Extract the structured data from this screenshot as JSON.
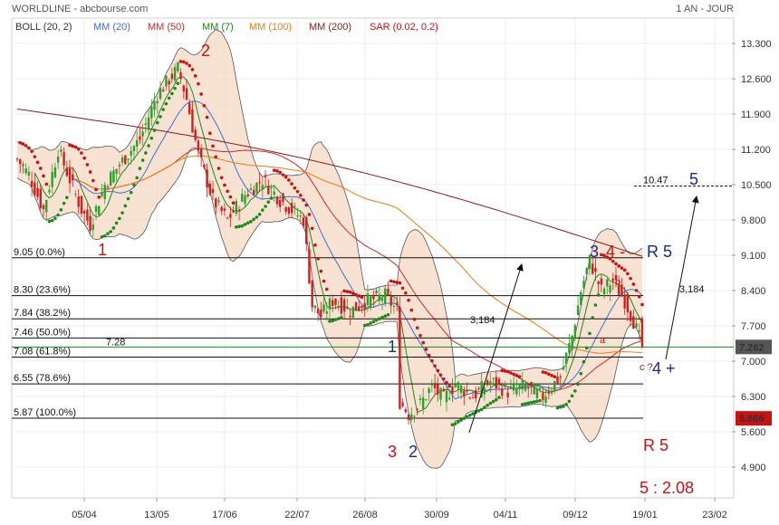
{
  "header": {
    "title": "WORLDLINE - abcbourse.com",
    "period": "1 AN - JOUR"
  },
  "indicators": [
    {
      "label": "BOLL (20, 2)",
      "color": "#333333"
    },
    {
      "label": "MM (20)",
      "color": "#3a6fd8"
    },
    {
      "label": "MM (50)",
      "color": "#d62828"
    },
    {
      "label": "MM (7)",
      "color": "#1a8a1a"
    },
    {
      "label": "MM (100)",
      "color": "#f07a10"
    },
    {
      "label": "MM (200)",
      "color": "#8b1a1a"
    },
    {
      "label": "SAR (0.02, 0.2)",
      "color": "#cc1111"
    }
  ],
  "colors": {
    "up_candle": "#2e9e2e",
    "down_candle": "#d11f1f",
    "bollinger_fill": "#f6d9c3",
    "last_price_box": "#555555",
    "ref_price_box": "#cc1111"
  },
  "annotations": {
    "fib_levels": [
      {
        "label": "9.05  (0.0%)",
        "value": 9.05
      },
      {
        "label": "8.30  (23.6%)",
        "value": 8.3
      },
      {
        "label": "7.84  (38.2%)",
        "value": 7.84
      },
      {
        "label": "7.46  (50.0%)",
        "value": 7.46
      },
      {
        "label": "7.08  (61.8%)",
        "value": 7.08
      },
      {
        "label": "6.55  (78.6%)",
        "value": 6.55
      },
      {
        "label": "5.87  (100.0%)",
        "value": 5.87
      }
    ],
    "hline_728": "7.28",
    "hline_1047": "10.47",
    "measure_left": "3,184",
    "measure_right": "3,184",
    "waves": [
      {
        "text": "1",
        "color": "#cc1111"
      },
      {
        "text": "2",
        "color": "#cc1111"
      },
      {
        "text": "1",
        "color": "#1a2a8a"
      },
      {
        "text": "3",
        "color": "#cc1111"
      },
      {
        "text": "2",
        "color": "#1a2a8a"
      },
      {
        "text": "3",
        "color": "#1a2a8a"
      },
      {
        "text": "4 -",
        "color": "#cc1111"
      },
      {
        "text": "R 5",
        "color": "#1a2a8a"
      },
      {
        "text": "4 +",
        "color": "#1a2a8a"
      },
      {
        "text": "5",
        "color": "#1a2a8a"
      },
      {
        "text": "R 5",
        "color": "#cc1111"
      },
      {
        "text": "5 : 2.08",
        "color": "#cc1111"
      }
    ],
    "small_labels": [
      "a",
      "b",
      "c ?"
    ]
  },
  "chart_data": {
    "type": "candlestick",
    "title": "WORLDLINE - abcbourse.com",
    "period": "1 AN - JOUR",
    "y_axis": {
      "ticks": [
        "13.300",
        "12.600",
        "11.900",
        "11.200",
        "10.500",
        "9.800",
        "9.100",
        "8.400",
        "7.700",
        "7.000",
        "6.300",
        "5.600",
        "4.900"
      ],
      "range": [
        4.75,
        13.5
      ]
    },
    "x_axis": {
      "ticks": [
        "05/04",
        "13/05",
        "17/06",
        "22/07",
        "26/08",
        "30/09",
        "04/11",
        "09/12",
        "19/01",
        "23/02"
      ]
    },
    "last_price": "7.282",
    "ref_price": "5.866",
    "price_keypoints": [
      [
        0,
        11.0
      ],
      [
        4,
        10.7
      ],
      [
        9,
        10.0
      ],
      [
        14,
        11.2
      ],
      [
        18,
        10.6
      ],
      [
        22,
        10.0
      ],
      [
        25,
        9.7
      ],
      [
        30,
        10.5
      ],
      [
        35,
        10.9
      ],
      [
        42,
        11.4
      ],
      [
        48,
        12.3
      ],
      [
        55,
        12.8
      ],
      [
        58,
        12.2
      ],
      [
        62,
        11.1
      ],
      [
        67,
        10.2
      ],
      [
        72,
        9.8
      ],
      [
        78,
        10.3
      ],
      [
        84,
        10.6
      ],
      [
        90,
        10.2
      ],
      [
        94,
        10.0
      ],
      [
        98,
        9.8
      ],
      [
        101,
        8.1
      ],
      [
        104,
        7.9
      ],
      [
        108,
        8.2
      ],
      [
        114,
        8.0
      ],
      [
        120,
        8.2
      ],
      [
        126,
        8.3
      ],
      [
        130,
        8.0
      ],
      [
        131,
        6.2
      ],
      [
        134,
        5.95
      ],
      [
        138,
        6.15
      ],
      [
        142,
        6.5
      ],
      [
        146,
        6.25
      ],
      [
        150,
        6.55
      ],
      [
        156,
        6.3
      ],
      [
        162,
        6.6
      ],
      [
        168,
        6.4
      ],
      [
        174,
        6.5
      ],
      [
        180,
        6.3
      ],
      [
        186,
        6.7
      ],
      [
        190,
        7.5
      ],
      [
        193,
        8.4
      ],
      [
        196,
        9.0
      ],
      [
        200,
        8.4
      ],
      [
        204,
        8.6
      ],
      [
        208,
        8.2
      ],
      [
        211,
        7.8
      ],
      [
        214,
        7.28
      ]
    ]
  }
}
